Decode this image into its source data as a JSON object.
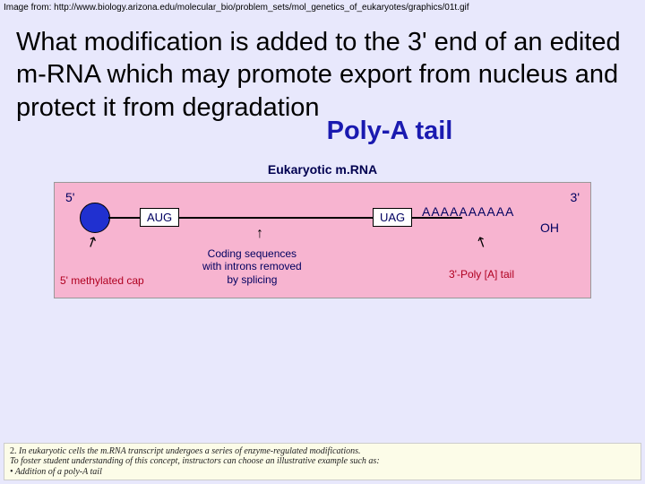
{
  "source": "Image from: http://www.biology.arizona.edu/molecular_bio/problem_sets/mol_genetics_of_eukaryotes/graphics/01t.gif",
  "question": "What modification is added to the 3' end of an edited m-RNA which may promote export from nucleus and protect it from degradation",
  "answer": "Poly-A tail",
  "diagram": {
    "title": "Eukaryotic m.RNA",
    "five_prime": "5'",
    "three_prime": "3'",
    "start_codon": "AUG",
    "stop_codon": "UAG",
    "poly_a_seq": "AAAAAAAAAA",
    "oh": "OH",
    "cap_label": "5' methylated cap",
    "coding_label_l1": "Coding sequences",
    "coding_label_l2": "with introns removed",
    "coding_label_l3": "by splicing",
    "tail_label": "3'-Poly [A] tail",
    "colors": {
      "bg": "#f7b4d0",
      "cap": "#2030d0",
      "text": "#000060",
      "red_label": "#b00020"
    }
  },
  "footnote": {
    "line1_lead": "2. ",
    "line1": "In eukaryotic cells the m.RNA transcript undergoes a series of enzyme-regulated modifications.",
    "line2": "To foster student understanding of this concept, instructors can choose an illustrative example such as:",
    "line3": "• Addition of a poly-A tail"
  }
}
